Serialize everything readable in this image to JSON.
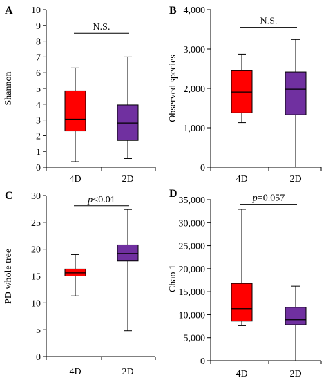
{
  "chart_data": [
    {
      "type": "box",
      "panel_letter": "A",
      "ylabel": "Shannon",
      "ylim": [
        0,
        10
      ],
      "yticks": [
        0,
        1,
        2,
        3,
        4,
        5,
        6,
        7,
        8,
        9,
        10
      ],
      "tick_labels": [
        "0",
        "1",
        "2",
        "3",
        "4",
        "5",
        "6",
        "7",
        "8",
        "9",
        "10"
      ],
      "categories": [
        "4D",
        "2D"
      ],
      "boxes": [
        {
          "name": "4D",
          "min": 0.35,
          "q1": 2.3,
          "median": 3.05,
          "q3": 4.85,
          "max": 6.3,
          "color": "#ff0000"
        },
        {
          "name": "2D",
          "min": 0.55,
          "q1": 1.7,
          "median": 2.8,
          "q3": 3.95,
          "max": 7.0,
          "color": "#7030a0"
        }
      ],
      "annotation": {
        "text": "N.S.",
        "italic_prefix": "",
        "y": 8.5
      }
    },
    {
      "type": "box",
      "panel_letter": "B",
      "ylabel": "Observed species",
      "ylim": [
        0,
        4000
      ],
      "yticks": [
        0,
        1000,
        2000,
        3000,
        4000
      ],
      "tick_labels": [
        "0",
        "1,000",
        "2,000",
        "3,000",
        "4,000"
      ],
      "categories": [
        "4D",
        "2D"
      ],
      "boxes": [
        {
          "name": "4D",
          "min": 1130,
          "q1": 1380,
          "median": 1910,
          "q3": 2450,
          "max": 2870,
          "color": "#ff0000"
        },
        {
          "name": "2D",
          "min": 0,
          "q1": 1330,
          "median": 1980,
          "q3": 2420,
          "max": 3240,
          "color": "#7030a0"
        }
      ],
      "annotation": {
        "text": "N.S.",
        "italic_prefix": "",
        "y": 3550
      }
    },
    {
      "type": "box",
      "panel_letter": "C",
      "ylabel": "PD whole tree",
      "ylim": [
        0,
        30
      ],
      "yticks": [
        0,
        5,
        10,
        15,
        20,
        25,
        30
      ],
      "tick_labels": [
        "0",
        "5",
        "10",
        "15",
        "20",
        "25",
        "30"
      ],
      "categories": [
        "4D",
        "2D"
      ],
      "boxes": [
        {
          "name": "4D",
          "min": 11.3,
          "q1": 15.0,
          "median": 15.6,
          "q3": 16.3,
          "max": 19.0,
          "color": "#ff0000"
        },
        {
          "name": "2D",
          "min": 4.8,
          "q1": 17.8,
          "median": 19.2,
          "q3": 20.8,
          "max": 27.4,
          "color": "#7030a0"
        }
      ],
      "annotation": {
        "text": "<0.01",
        "italic_prefix": "p",
        "y": 28.1
      }
    },
    {
      "type": "box",
      "panel_letter": "D",
      "ylabel": "Chao 1",
      "ylim": [
        0,
        35000
      ],
      "yticks": [
        0,
        5000,
        10000,
        15000,
        20000,
        25000,
        30000,
        35000
      ],
      "tick_labels": [
        "0",
        "5,000",
        "10,000",
        "15,000",
        "20,000",
        "25,000",
        "30,000",
        "35,000"
      ],
      "categories": [
        "4D",
        "2D"
      ],
      "boxes": [
        {
          "name": "4D",
          "min": 7600,
          "q1": 8600,
          "median": 11300,
          "q3": 16800,
          "max": 32900,
          "color": "#ff0000"
        },
        {
          "name": "2D",
          "min": 0,
          "q1": 7800,
          "median": 8900,
          "q3": 11600,
          "max": 16200,
          "color": "#7030a0"
        }
      ],
      "annotation": {
        "text": "=0.057",
        "italic_prefix": "p",
        "y": 34000
      }
    }
  ]
}
